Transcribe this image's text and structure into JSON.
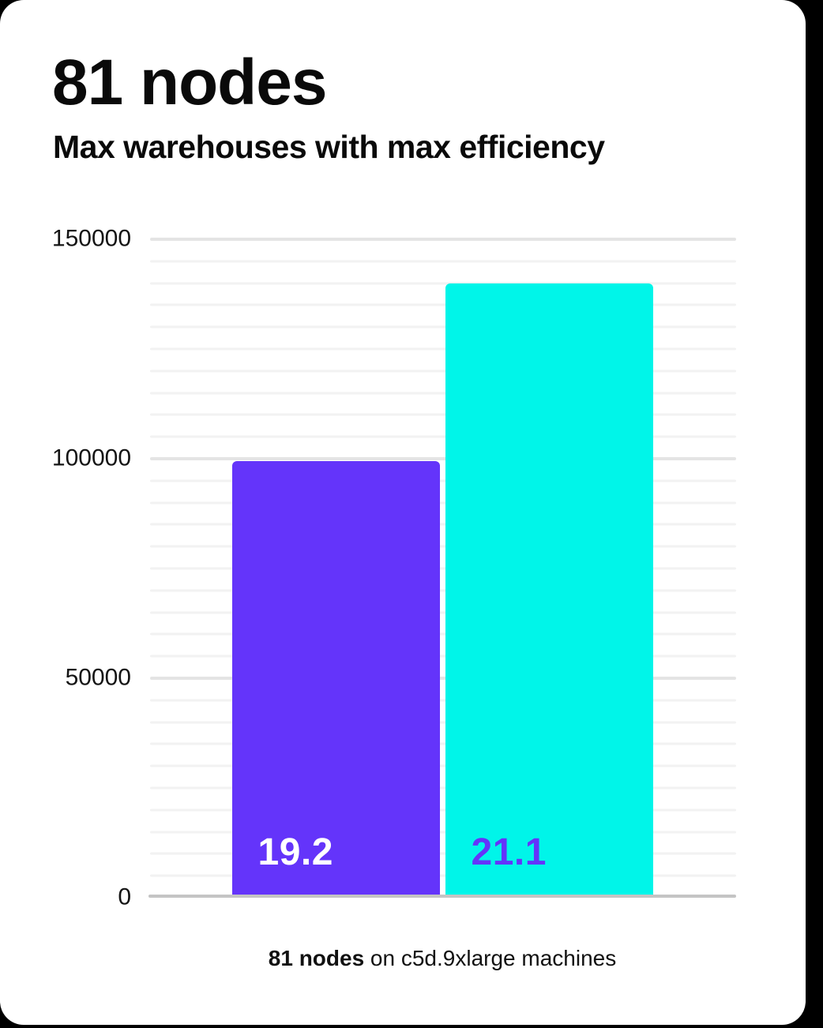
{
  "page": {
    "background_color": "#000000",
    "card_color": "#ffffff"
  },
  "header": {
    "title": "81 nodes",
    "subtitle": "Max warehouses with max efficiency"
  },
  "caption": {
    "bold": "81 nodes",
    "rest": " on c5d.9xlarge machines"
  },
  "chart_data": {
    "type": "bar",
    "title": "81 nodes",
    "subtitle": "Max warehouses with max efficiency",
    "categories": [
      "19.2",
      "21.1"
    ],
    "values": [
      99500,
      140000
    ],
    "series": [
      {
        "name": "19.2",
        "value": 99500,
        "color": "#6434FA",
        "label_color": "#ffffff"
      },
      {
        "name": "21.1",
        "value": 140000,
        "color": "#00F5E9",
        "label_color": "#6434FA"
      }
    ],
    "xlabel": "",
    "ylabel": "",
    "ylim": [
      0,
      150000
    ],
    "yticks": [
      0,
      50000,
      100000,
      150000
    ],
    "ytick_labels": [
      "0",
      "50000",
      "100000",
      "150000"
    ],
    "minor_grid_step": 5000,
    "grid": true,
    "legend": false,
    "caption": "81 nodes on c5d.9xlarge machines",
    "bar_label_position": "inside-bottom-left",
    "axis_color": "#c4c4c4",
    "grid_minor_color": "#f2f2f2",
    "grid_major_color": "#e4e4e4"
  }
}
